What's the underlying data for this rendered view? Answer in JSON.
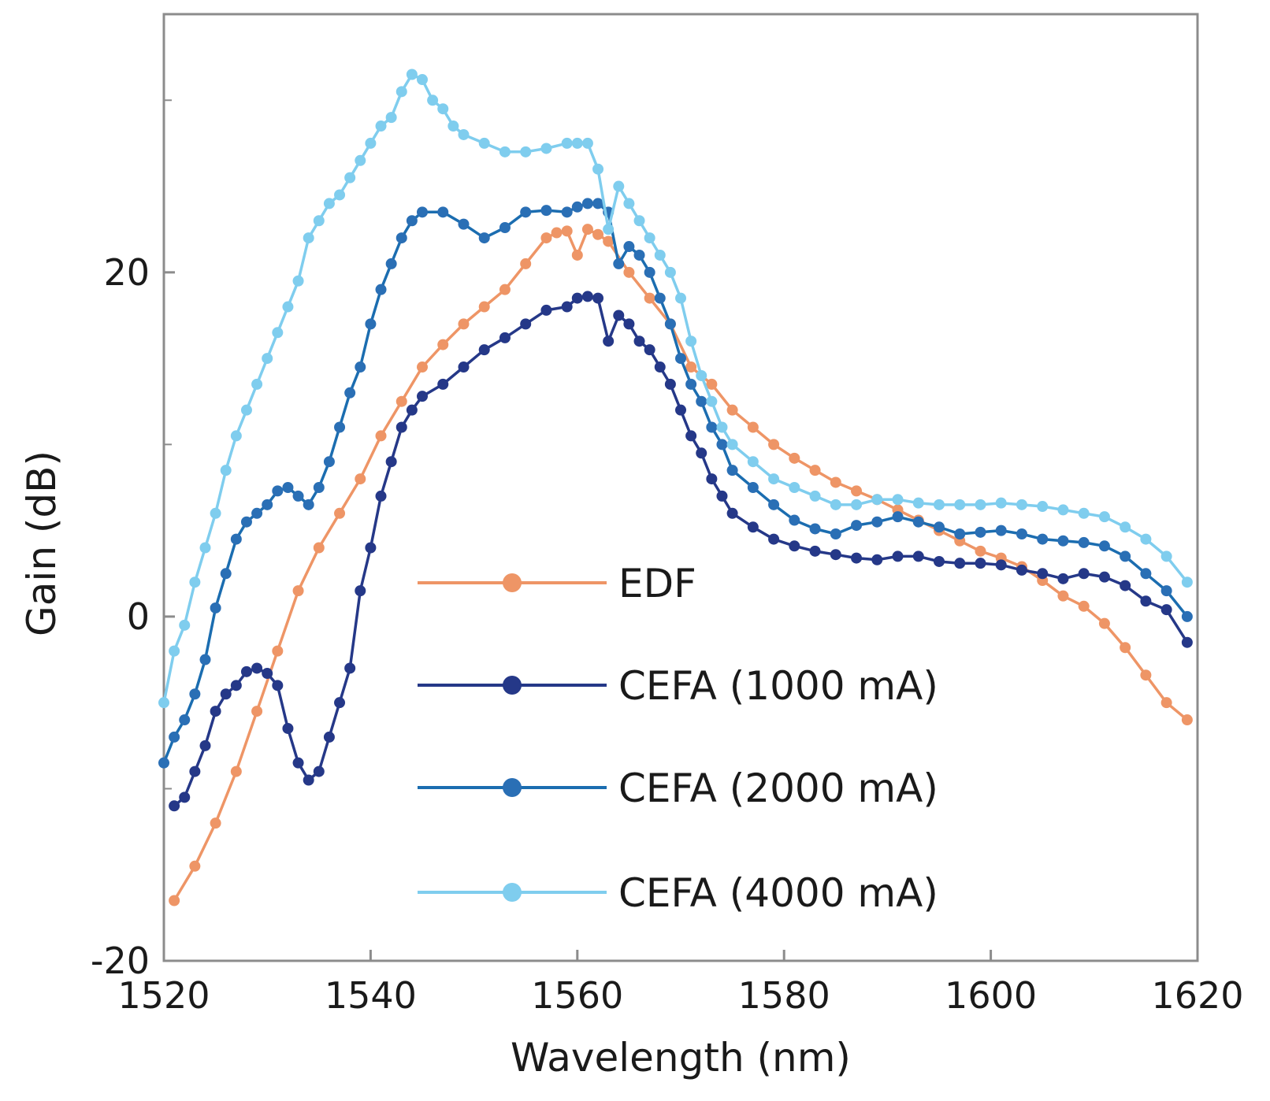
{
  "chart_data": {
    "type": "line",
    "title": "",
    "xlabel": "Wavelength (nm)",
    "ylabel": "Gain (dB)",
    "xlim": [
      1520,
      1620
    ],
    "ylim": [
      -20,
      35
    ],
    "xticks": [
      1520,
      1540,
      1560,
      1580,
      1600,
      1620
    ],
    "yticks_labeled": [
      -20,
      0,
      20
    ],
    "yticks_minor": [
      -10,
      10,
      30
    ],
    "grid": false,
    "legend_placement": "center-bottom",
    "series": [
      {
        "name": "EDF",
        "color": "#EE9566",
        "marker_color": "#EE9566",
        "x": [
          1521,
          1523,
          1525,
          1527,
          1529,
          1531,
          1533,
          1535,
          1537,
          1539,
          1541,
          1543,
          1545,
          1547,
          1549,
          1551,
          1553,
          1555,
          1557,
          1558,
          1559,
          1560,
          1561,
          1562,
          1563,
          1565,
          1567,
          1569,
          1571,
          1573,
          1575,
          1577,
          1579,
          1581,
          1583,
          1585,
          1587,
          1589,
          1591,
          1593,
          1595,
          1597,
          1599,
          1601,
          1603,
          1605,
          1607,
          1609,
          1611,
          1613,
          1615,
          1617,
          1619
        ],
        "y": [
          -16.5,
          -14.5,
          -12,
          -9,
          -5.5,
          -2,
          1.5,
          4,
          6,
          8,
          10.5,
          12.5,
          14.5,
          15.8,
          17,
          18,
          19,
          20.5,
          22,
          22.3,
          22.4,
          21.0,
          22.5,
          22.2,
          21.8,
          20,
          18.5,
          17,
          14.5,
          13.5,
          12,
          11,
          10,
          9.2,
          8.5,
          7.8,
          7.3,
          6.8,
          6.2,
          5.6,
          5.0,
          4.4,
          3.8,
          3.4,
          2.9,
          2.1,
          1.2,
          0.6,
          -0.4,
          -1.8,
          -3.4,
          -5.0,
          -6.0
        ]
      },
      {
        "name": "CEFA (1000 mA)",
        "color": "#253888",
        "marker_color": "#253888",
        "x": [
          1521,
          1522,
          1523,
          1524,
          1525,
          1526,
          1527,
          1528,
          1529,
          1530,
          1531,
          1532,
          1533,
          1534,
          1535,
          1536,
          1537,
          1538,
          1539,
          1540,
          1541,
          1542,
          1543,
          1544,
          1545,
          1547,
          1549,
          1551,
          1553,
          1555,
          1557,
          1559,
          1560,
          1561,
          1562,
          1563,
          1564,
          1565,
          1566,
          1567,
          1568,
          1569,
          1570,
          1571,
          1572,
          1573,
          1574,
          1575,
          1577,
          1579,
          1581,
          1583,
          1585,
          1587,
          1589,
          1591,
          1593,
          1595,
          1597,
          1599,
          1601,
          1603,
          1605,
          1607,
          1609,
          1611,
          1613,
          1615,
          1617,
          1619
        ],
        "y": [
          -11,
          -10.5,
          -9,
          -7.5,
          -5.5,
          -4.5,
          -4,
          -3.2,
          -3,
          -3.3,
          -4,
          -6.5,
          -8.5,
          -9.5,
          -9,
          -7,
          -5,
          -3,
          1.5,
          4,
          7,
          9,
          11,
          12,
          12.8,
          13.5,
          14.5,
          15.5,
          16.2,
          17.0,
          17.8,
          18.0,
          18.5,
          18.6,
          18.5,
          16,
          17.5,
          17,
          16,
          15.5,
          14.5,
          13.5,
          12,
          10.5,
          9.5,
          8.0,
          7.0,
          6.0,
          5.2,
          4.5,
          4.1,
          3.8,
          3.6,
          3.4,
          3.3,
          3.5,
          3.5,
          3.2,
          3.1,
          3.1,
          3.0,
          2.7,
          2.5,
          2.2,
          2.5,
          2.3,
          1.8,
          0.9,
          0.4,
          -1.5
        ]
      },
      {
        "name": "CEFA (2000 mA)",
        "color": "#1B6DB0",
        "marker_color": "#2A6FB5",
        "x": [
          1520,
          1521,
          1522,
          1523,
          1524,
          1525,
          1526,
          1527,
          1528,
          1529,
          1530,
          1531,
          1532,
          1533,
          1534,
          1535,
          1536,
          1537,
          1538,
          1539,
          1540,
          1541,
          1542,
          1543,
          1544,
          1545,
          1547,
          1549,
          1551,
          1553,
          1555,
          1557,
          1559,
          1560,
          1561,
          1562,
          1563,
          1564,
          1565,
          1566,
          1567,
          1568,
          1569,
          1570,
          1571,
          1572,
          1573,
          1574,
          1575,
          1577,
          1579,
          1581,
          1583,
          1585,
          1587,
          1589,
          1591,
          1593,
          1595,
          1597,
          1599,
          1601,
          1603,
          1605,
          1607,
          1609,
          1611,
          1613,
          1615,
          1617,
          1619
        ],
        "y": [
          -8.5,
          -7,
          -6,
          -4.5,
          -2.5,
          0.5,
          2.5,
          4.5,
          5.5,
          6,
          6.5,
          7.3,
          7.5,
          7.0,
          6.5,
          7.5,
          9,
          11,
          13,
          14.5,
          17,
          19,
          20.5,
          22,
          23,
          23.5,
          23.5,
          22.8,
          22.0,
          22.6,
          23.5,
          23.6,
          23.5,
          23.8,
          24.0,
          24.0,
          23.5,
          20.5,
          21.5,
          21,
          20,
          18.5,
          17,
          15,
          13.5,
          12.5,
          11,
          10,
          8.5,
          7.5,
          6.5,
          5.6,
          5.1,
          4.8,
          5.3,
          5.5,
          5.8,
          5.5,
          5.2,
          4.8,
          4.9,
          5.0,
          4.8,
          4.5,
          4.4,
          4.3,
          4.1,
          3.5,
          2.5,
          1.5,
          0.0
        ]
      },
      {
        "name": "CEFA (4000 mA)",
        "color": "#7FCDEE",
        "marker_color": "#7FCDEE",
        "x": [
          1520,
          1521,
          1522,
          1523,
          1524,
          1525,
          1526,
          1527,
          1528,
          1529,
          1530,
          1531,
          1532,
          1533,
          1534,
          1535,
          1536,
          1537,
          1538,
          1539,
          1540,
          1541,
          1542,
          1543,
          1544,
          1545,
          1546,
          1547,
          1548,
          1549,
          1551,
          1553,
          1555,
          1557,
          1559,
          1560,
          1561,
          1562,
          1563,
          1564,
          1565,
          1566,
          1567,
          1568,
          1569,
          1570,
          1571,
          1572,
          1573,
          1574,
          1575,
          1577,
          1579,
          1581,
          1583,
          1585,
          1587,
          1589,
          1591,
          1593,
          1595,
          1597,
          1599,
          1601,
          1603,
          1605,
          1607,
          1609,
          1611,
          1613,
          1615,
          1617,
          1619
        ],
        "y": [
          -5,
          -2,
          -0.5,
          2,
          4,
          6,
          8.5,
          10.5,
          12,
          13.5,
          15,
          16.5,
          18,
          19.5,
          22,
          23,
          24,
          24.5,
          25.5,
          26.5,
          27.5,
          28.5,
          29,
          30.5,
          31.5,
          31.2,
          30,
          29.5,
          28.5,
          28,
          27.5,
          27.0,
          27.0,
          27.2,
          27.5,
          27.5,
          27.5,
          26,
          22.5,
          25,
          24,
          23,
          22,
          21,
          20,
          18.5,
          16,
          14,
          12.5,
          11,
          10,
          9,
          8,
          7.5,
          7.0,
          6.5,
          6.5,
          6.8,
          6.8,
          6.6,
          6.5,
          6.5,
          6.5,
          6.6,
          6.5,
          6.4,
          6.2,
          6.0,
          5.8,
          5.2,
          4.5,
          3.5,
          2.0
        ]
      }
    ]
  }
}
